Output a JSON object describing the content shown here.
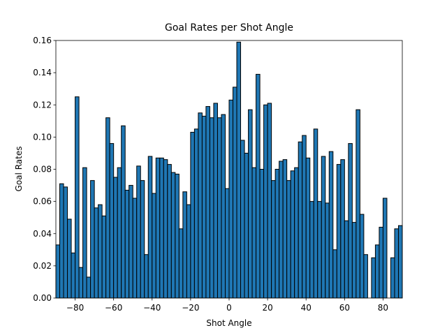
{
  "chart_data": {
    "type": "histogram",
    "title": "Goal Rates per Shot Angle",
    "xlabel": "Shot Angle",
    "ylabel": "Goal Rates",
    "bins": [
      -90,
      -88,
      -86,
      -84,
      -82,
      -80,
      -78,
      -76,
      -74,
      -72,
      -70,
      -68,
      -66,
      -64,
      -62,
      -60,
      -58,
      -56,
      -54,
      -52,
      -50,
      -48,
      -46,
      -44,
      -42,
      -40,
      -38,
      -36,
      -34,
      -32,
      -30,
      -28,
      -26,
      -24,
      -22,
      -20,
      -18,
      -16,
      -14,
      -12,
      -10,
      -8,
      -6,
      -4,
      -2,
      0,
      2,
      4,
      6,
      8,
      10,
      12,
      14,
      16,
      18,
      20,
      22,
      24,
      26,
      28,
      30,
      32,
      34,
      36,
      38,
      40,
      42,
      44,
      46,
      48,
      50,
      52,
      54,
      56,
      58,
      60,
      62,
      64,
      66,
      68,
      70,
      72,
      74,
      76,
      78,
      80,
      82,
      84,
      86,
      88,
      90
    ],
    "values": [
      0.033,
      0.071,
      0.069,
      0.049,
      0.028,
      0.125,
      0.019,
      0.081,
      0.013,
      0.073,
      0.056,
      0.058,
      0.051,
      0.112,
      0.096,
      0.075,
      0.081,
      0.107,
      0.067,
      0.07,
      0.062,
      0.082,
      0.073,
      0.027,
      0.088,
      0.065,
      0.087,
      0.087,
      0.086,
      0.083,
      0.078,
      0.077,
      0.043,
      0.066,
      0.058,
      0.103,
      0.105,
      0.115,
      0.113,
      0.119,
      0.112,
      0.121,
      0.112,
      0.114,
      0.068,
      0.123,
      0.131,
      0.159,
      0.098,
      0.09,
      0.117,
      0.081,
      0.139,
      0.08,
      0.12,
      0.121,
      0.073,
      0.08,
      0.085,
      0.086,
      0.073,
      0.079,
      0.081,
      0.097,
      0.101,
      0.087,
      0.06,
      0.105,
      0.06,
      0.088,
      0.059,
      0.091,
      0.03,
      0.083,
      0.086,
      0.048,
      0.096,
      0.047,
      0.117,
      0.052,
      0.027,
      0,
      0.025,
      0.033,
      0.044,
      0.062,
      0,
      0.025,
      0.043,
      0.045
    ],
    "color": "#1f77b4",
    "edgecolor": "#000000",
    "xlim": [
      -90,
      90
    ],
    "xticks": [
      -80,
      -60,
      -40,
      -20,
      0,
      20,
      40,
      60,
      80
    ],
    "ylim": [
      0,
      0.16
    ],
    "yticks": [
      {
        "value": 0,
        "label": "0.00"
      },
      {
        "value": 0.02,
        "label": "0.02"
      },
      {
        "value": 0.04,
        "label": "0.04"
      },
      {
        "value": 0.06,
        "label": "0.06"
      },
      {
        "value": 0.08,
        "label": "0.08"
      },
      {
        "value": 0.1,
        "label": "0.10"
      },
      {
        "value": 0.12,
        "label": "0.12"
      },
      {
        "value": 0.14,
        "label": "0.14"
      },
      {
        "value": 0.16,
        "label": "0.16"
      }
    ]
  }
}
